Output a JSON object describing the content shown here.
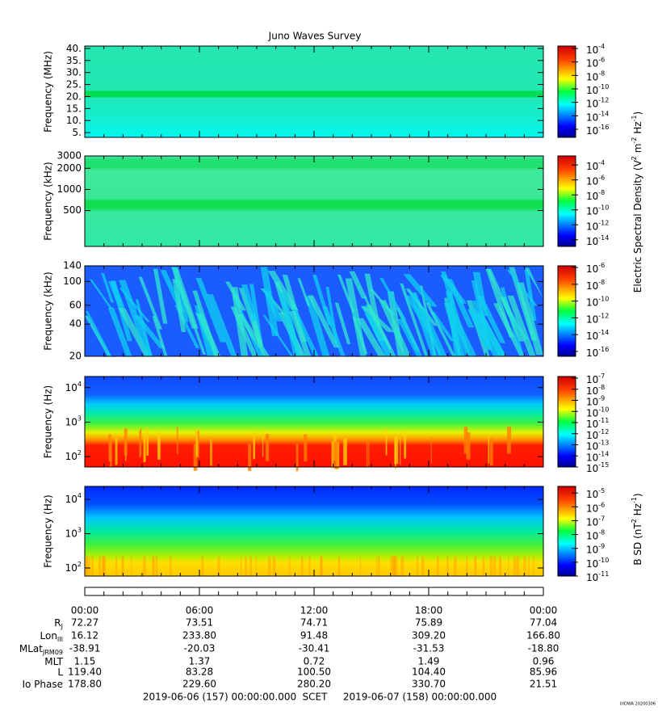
{
  "title": "Juno Waves Survey",
  "chart_data": [
    {
      "type": "spectrogram",
      "ylabel": "Frequency (MHz)",
      "yscale": "linear",
      "ylim": [
        3,
        41
      ],
      "yticks": [
        {
          "value": 40,
          "label": "40."
        },
        {
          "value": 35,
          "label": "35."
        },
        {
          "value": 30,
          "label": "30."
        },
        {
          "value": 25,
          "label": "25."
        },
        {
          "value": 20,
          "label": "20."
        },
        {
          "value": 15,
          "label": "15."
        },
        {
          "value": 10,
          "label": "10."
        },
        {
          "value": 5,
          "label": "5."
        }
      ],
      "colorbar": {
        "zlim": [
          6.3e-18,
          0.00023
        ],
        "zticks": [
          {
            "value": 0.0001,
            "label": "10",
            "sup": "-4"
          },
          {
            "value": 1e-06,
            "label": "10",
            "sup": "-6"
          },
          {
            "value": 1e-08,
            "label": "10",
            "sup": "-8"
          },
          {
            "value": 1e-10,
            "label": "10",
            "sup": "-10"
          },
          {
            "value": 1e-12,
            "label": "10",
            "sup": "-12"
          },
          {
            "value": 1e-14,
            "label": "10",
            "sup": "-14"
          },
          {
            "value": 1e-16,
            "label": "10",
            "sup": "-16"
          }
        ]
      }
    },
    {
      "type": "spectrogram",
      "ylabel": "Frequency (kHz)",
      "yscale": "log",
      "ylim": [
        154,
        3000
      ],
      "yticks": [
        3000,
        2000,
        1000,
        500
      ],
      "colorbar": {
        "zlim": [
          1.3e-15,
          0.0016
        ],
        "zticks": [
          {
            "value": 0.0001,
            "label": "10",
            "sup": "-4"
          },
          {
            "value": 1e-06,
            "label": "10",
            "sup": "-6"
          },
          {
            "value": 1e-08,
            "label": "10",
            "sup": "-8"
          },
          {
            "value": 1e-10,
            "label": "10",
            "sup": "-10"
          },
          {
            "value": 1e-12,
            "label": "10",
            "sup": "-12"
          },
          {
            "value": 1e-14,
            "label": "10",
            "sup": "-14"
          }
        ]
      }
    },
    {
      "type": "spectrogram",
      "ylabel": "Frequency (kHz)",
      "yscale": "log",
      "ylim": [
        20,
        140
      ],
      "yticks": [
        140,
        100,
        60,
        40,
        20
      ],
      "colorbar": {
        "zlim": [
          2.6e-17,
          1.6e-06
        ],
        "zticks": [
          {
            "value": 1e-06,
            "label": "10",
            "sup": "-6"
          },
          {
            "value": 1e-08,
            "label": "10",
            "sup": "-8"
          },
          {
            "value": 1e-10,
            "label": "10",
            "sup": "-10"
          },
          {
            "value": 1e-12,
            "label": "10",
            "sup": "-12"
          },
          {
            "value": 1e-14,
            "label": "10",
            "sup": "-14"
          },
          {
            "value": 1e-16,
            "label": "10",
            "sup": "-16"
          }
        ]
      }
    },
    {
      "type": "spectrogram",
      "ylabel": "Frequency (Hz)",
      "yscale": "log",
      "ylim": [
        50,
        21000
      ],
      "yticks": [
        {
          "value": 10000,
          "label": "10",
          "sup": "4"
        },
        {
          "value": 1000,
          "label": "10",
          "sup": "3"
        },
        {
          "value": 100,
          "label": "10",
          "sup": "2"
        }
      ],
      "colorbar": {
        "zlim": [
          1e-15,
          1.4e-07
        ],
        "zticks": [
          {
            "value": 1e-07,
            "label": "10",
            "sup": "-7"
          },
          {
            "value": 1e-08,
            "label": "10",
            "sup": "-8"
          },
          {
            "value": 1e-09,
            "label": "10",
            "sup": "-9"
          },
          {
            "value": 1e-10,
            "label": "10",
            "sup": "-10"
          },
          {
            "value": 1e-11,
            "label": "10",
            "sup": "-11"
          },
          {
            "value": 1e-12,
            "label": "10",
            "sup": "-12"
          },
          {
            "value": 1e-13,
            "label": "10",
            "sup": "-13"
          },
          {
            "value": 1e-14,
            "label": "10",
            "sup": "-14"
          },
          {
            "value": 1e-15,
            "label": "10",
            "sup": "-15"
          }
        ]
      }
    },
    {
      "type": "spectrogram",
      "ylabel": "Frequency (Hz)",
      "yscale": "log",
      "ylim": [
        58,
        24000
      ],
      "yticks": [
        {
          "value": 10000,
          "label": "10",
          "sup": "4"
        },
        {
          "value": 1000,
          "label": "10",
          "sup": "3"
        },
        {
          "value": 100,
          "label": "10",
          "sup": "2"
        }
      ],
      "colorbar": {
        "zlim": [
          1e-11,
          3e-05
        ],
        "zticks": [
          {
            "value": 1e-05,
            "label": "10",
            "sup": "-5"
          },
          {
            "value": 1e-06,
            "label": "10",
            "sup": "-6"
          },
          {
            "value": 1e-07,
            "label": "10",
            "sup": "-7"
          },
          {
            "value": 1e-08,
            "label": "10",
            "sup": "-8"
          },
          {
            "value": 1e-09,
            "label": "10",
            "sup": "-9"
          },
          {
            "value": 1e-10,
            "label": "10",
            "sup": "-10"
          },
          {
            "value": 1e-11,
            "label": "10",
            "sup": "-11"
          }
        ]
      }
    }
  ],
  "colorbar_labels": [
    {
      "parts": [
        {
          "text": "Electric Spectral Density (V",
          "sup": "2"
        },
        {
          "text": " m",
          "sup": "-2"
        },
        {
          "text": " Hz",
          "sup": "-1"
        },
        {
          "text": ")"
        }
      ]
    },
    {
      "parts": [
        {
          "text": "B SD (nT",
          "sup": "2"
        },
        {
          "text": " Hz",
          "sup": "-1"
        },
        {
          "text": ")"
        }
      ]
    }
  ],
  "time_axis": [
    "00:00",
    "06:00",
    "12:00",
    "18:00",
    "00:00"
  ],
  "ephemeris": [
    {
      "label": "R",
      "sub": "J",
      "values": [
        "72.27",
        "73.51",
        "74.71",
        "75.89",
        "77.04"
      ]
    },
    {
      "label": "Lon",
      "sub": "III",
      "values": [
        "16.12",
        "233.80",
        "91.48",
        "309.20",
        "166.80"
      ]
    },
    {
      "label": "MLat",
      "sub": "JRM09",
      "values": [
        "-38.91",
        "-20.03",
        "-30.41",
        "-31.53",
        "-18.80"
      ]
    },
    {
      "label": "MLT",
      "values": [
        "1.15",
        "1.37",
        "0.72",
        "1.49",
        "0.96"
      ]
    },
    {
      "label": "L",
      "values": [
        "119.40",
        "83.28",
        "100.50",
        "104.40",
        "85.96"
      ]
    },
    {
      "label": "Io Phase",
      "values": [
        "178.80",
        "229.60",
        "280.20",
        "330.70",
        "21.51"
      ]
    }
  ],
  "footer": {
    "start": "2019-06-06 (157) 00:00:00.000",
    "axis": "SCET",
    "end": "2019-06-07 (158) 00:00:00.000",
    "credit": "UIOWA 20200306"
  }
}
